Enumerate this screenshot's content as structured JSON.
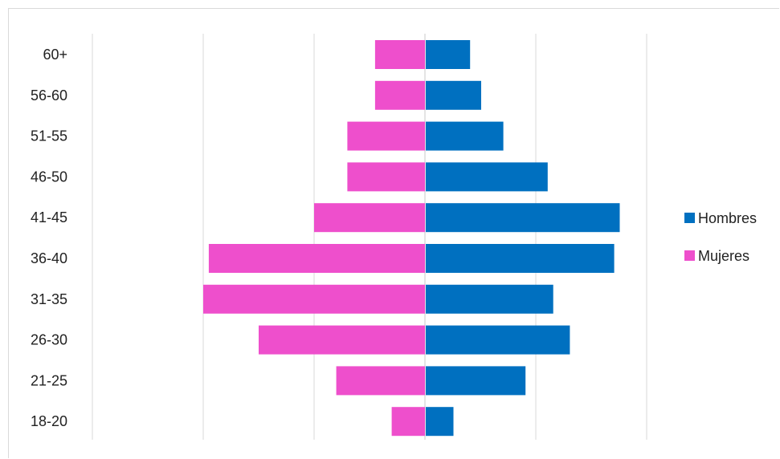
{
  "chart_data": {
    "type": "bar",
    "orientation": "horizontal",
    "subtype": "population-pyramid",
    "title": "",
    "xlabel": "",
    "ylabel": "",
    "categories": [
      "60+",
      "56-60",
      "51-55",
      "46-50",
      "41-45",
      "36-40",
      "31-35",
      "26-30",
      "21-25",
      "18-20"
    ],
    "series": [
      {
        "name": "Hombres",
        "color": "#0070c0",
        "side": "right",
        "values": [
          4,
          5,
          7,
          11,
          17.5,
          17,
          11.5,
          13,
          9,
          2.5
        ]
      },
      {
        "name": "Mujeres",
        "color": "#ee4fcc",
        "side": "left",
        "values": [
          4.5,
          4.5,
          7,
          7,
          10,
          19.5,
          20,
          15,
          8,
          3
        ]
      }
    ],
    "xlim": [
      -30,
      20
    ],
    "grid": true,
    "gridlines_at": [
      -30,
      -20,
      -10,
      0,
      10,
      20
    ],
    "legend_position": "right"
  }
}
